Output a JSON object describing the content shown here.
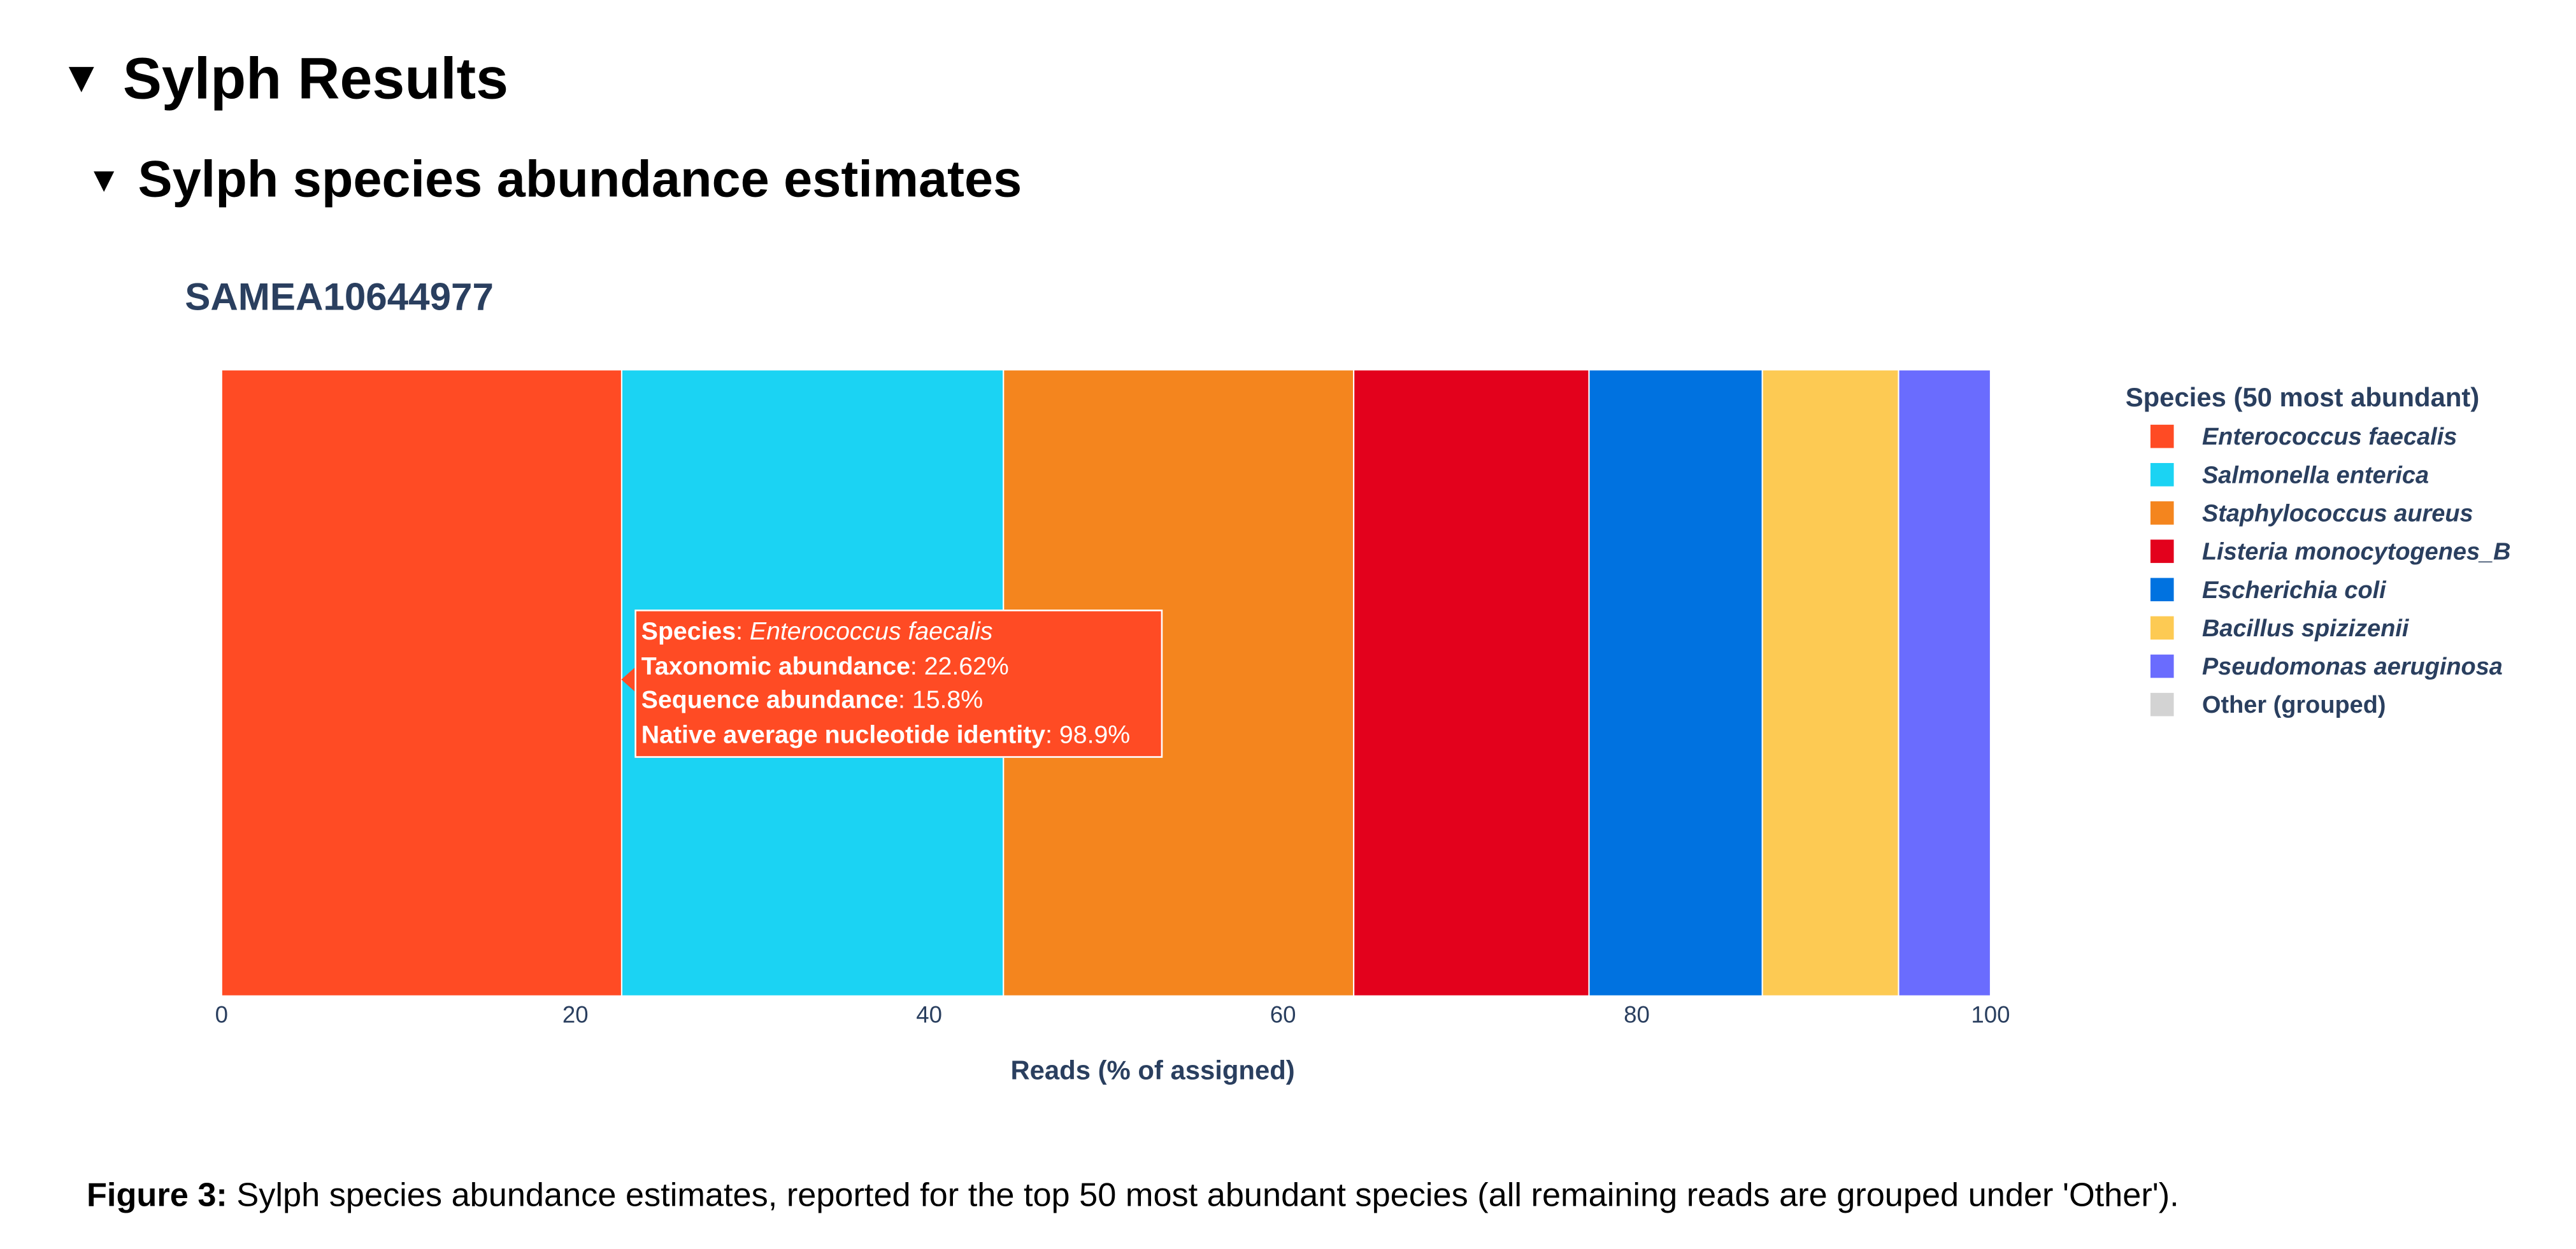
{
  "sections": {
    "results_title": "Sylph Results",
    "subsection_title": "Sylph species abundance estimates",
    "toggle_glyph": "▼"
  },
  "chart_data": {
    "type": "bar",
    "orientation": "horizontal-stacked",
    "title": "SAMEA10644977",
    "xlabel": "Reads (% of assigned)",
    "ylabel": "",
    "xlim": [
      0,
      100
    ],
    "xticks": [
      "0",
      "20",
      "40",
      "60",
      "80",
      "100"
    ],
    "grid": false,
    "legend_title": "Species (50 most abundant)",
    "legend_position": "right",
    "series": [
      {
        "name": "Enterococcus faecalis",
        "value": 22.62,
        "color": "#ff4b24"
      },
      {
        "name": "Salmonella enterica",
        "value": 21.58,
        "color": "#1bd3f3"
      },
      {
        "name": "Staphylococcus aureus",
        "value": 19.8,
        "color": "#f4851e"
      },
      {
        "name": "Listeria monocytogenes_B",
        "value": 13.3,
        "color": "#e3011c"
      },
      {
        "name": "Escherichia coli",
        "value": 9.8,
        "color": "#0072e0"
      },
      {
        "name": "Bacillus spizizenii",
        "value": 7.7,
        "color": "#fdca53"
      },
      {
        "name": "Pseudomonas aeruginosa",
        "value": 5.2,
        "color": "#6a6cfe"
      },
      {
        "name": "Other (grouped)",
        "value": 0,
        "color": "#d3d3d3"
      }
    ]
  },
  "tooltip": {
    "species_label": "Species",
    "species_value": "Enterococcus faecalis",
    "taxonomic_label": "Taxonomic abundance",
    "taxonomic_value": "22.62%",
    "sequence_label": "Sequence abundance",
    "sequence_value": "15.8%",
    "ani_label": "Native average nucleotide identity",
    "ani_value": "98.9%",
    "separator": ": "
  },
  "caption": {
    "label": "Figure 3:",
    "text": " Sylph species abundance estimates, reported for the top 50 most abundant species (all remaining reads are grouped under 'Other')."
  }
}
